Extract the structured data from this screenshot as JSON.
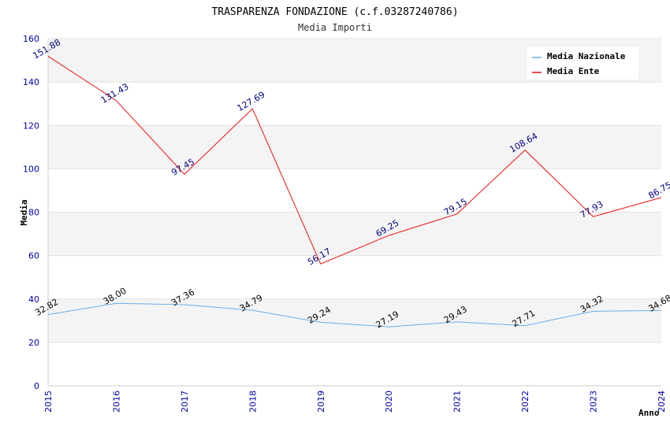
{
  "chart_data": {
    "type": "line",
    "title": "TRASPARENZA FONDAZIONE (c.f.03287240786)",
    "subtitle": "Media Importi",
    "xlabel": "Anno",
    "ylabel": "Media",
    "x": [
      "2015",
      "2016",
      "2017",
      "2018",
      "2019",
      "2020",
      "2021",
      "2022",
      "2023",
      "2024"
    ],
    "ylim": [
      0,
      160
    ],
    "yticks": [
      "0",
      "20",
      "40",
      "60",
      "80",
      "100",
      "120",
      "140",
      "160"
    ],
    "grid": true,
    "legend_position": "top-right",
    "series": [
      {
        "name": "Media Nazionale",
        "color": "#6aaee8",
        "label_color": "#000000",
        "values": [
          32.82,
          38.0,
          37.36,
          34.79,
          29.24,
          27.19,
          29.43,
          27.71,
          34.32,
          34.68
        ],
        "labels": [
          "32.82",
          "38.00",
          "37.36",
          "34.79",
          "29.24",
          "27.19",
          "29.43",
          "27.71",
          "34.32",
          "34.68"
        ]
      },
      {
        "name": "Media Ente",
        "color": "#ee1111",
        "label_color": "#000080",
        "values": [
          151.88,
          131.43,
          97.45,
          127.69,
          56.17,
          69.25,
          79.15,
          108.64,
          77.93,
          86.75
        ],
        "labels": [
          "151.88",
          "131.43",
          "97.45",
          "127.69",
          "56.17",
          "69.25",
          "79.15",
          "108.64",
          "77.93",
          "86.75"
        ]
      }
    ]
  }
}
